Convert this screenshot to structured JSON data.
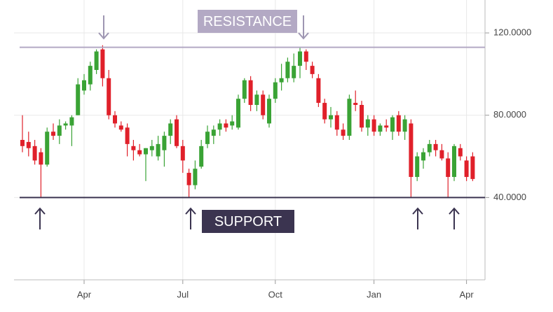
{
  "chart_data": {
    "type": "candlestick",
    "categories": [
      null,
      null,
      null,
      null,
      null,
      null,
      null,
      null,
      null,
      null,
      "Apr",
      null,
      null,
      null,
      null,
      null,
      null,
      null,
      null,
      null,
      null,
      null,
      null,
      null,
      null,
      null,
      "Jul",
      null,
      null,
      null,
      null,
      null,
      null,
      null,
      null,
      null,
      null,
      null,
      null,
      null,
      null,
      "Oct",
      null,
      null,
      null,
      null,
      null,
      null,
      null,
      null,
      null,
      null,
      null,
      null,
      null,
      null,
      null,
      "Jan",
      null,
      null,
      null,
      null,
      null,
      null,
      null,
      null,
      null,
      null,
      null,
      null,
      null,
      null,
      "Apr",
      null
    ],
    "open": [
      68,
      67,
      65,
      62,
      56,
      72,
      70,
      75,
      75,
      80,
      92,
      95,
      102,
      112,
      98,
      80,
      75,
      74,
      65,
      63,
      61,
      63,
      60,
      63,
      70,
      78,
      65,
      52,
      46,
      55,
      66,
      70,
      73,
      76,
      75,
      74,
      88,
      97,
      85,
      90,
      76,
      88,
      96,
      98,
      98,
      104,
      111,
      104,
      98,
      86,
      78,
      80,
      73,
      70,
      86,
      85,
      74,
      78,
      72,
      75,
      72,
      80,
      72,
      76,
      50,
      58,
      62,
      66,
      63,
      59,
      50,
      64,
      58,
      60
    ],
    "high": [
      80,
      72,
      68,
      64,
      74,
      76,
      78,
      77,
      80,
      98,
      100,
      106,
      112,
      114,
      102,
      82,
      77,
      76,
      68,
      66,
      64,
      68,
      70,
      72,
      78,
      80,
      68,
      54,
      58,
      68,
      75,
      75,
      78,
      78,
      80,
      90,
      98,
      99,
      92,
      92,
      90,
      98,
      105,
      108,
      110,
      113,
      112,
      106,
      100,
      88,
      84,
      82,
      76,
      90,
      92,
      87,
      80,
      80,
      76,
      78,
      80,
      82,
      80,
      78,
      62,
      64,
      68,
      68,
      66,
      62,
      66,
      66,
      60,
      62
    ],
    "low": [
      62,
      60,
      56,
      40,
      55,
      68,
      66,
      73,
      65,
      80,
      90,
      92,
      100,
      94,
      78,
      74,
      72,
      60,
      58,
      60,
      48,
      60,
      58,
      55,
      66,
      64,
      52,
      40,
      44,
      54,
      64,
      66,
      70,
      72,
      73,
      73,
      86,
      82,
      82,
      78,
      74,
      86,
      92,
      96,
      96,
      98,
      102,
      98,
      84,
      76,
      74,
      70,
      68,
      68,
      82,
      72,
      70,
      70,
      70,
      72,
      68,
      70,
      68,
      40,
      48,
      54,
      60,
      60,
      58,
      40,
      48,
      58,
      48,
      48
    ],
    "close": [
      65,
      64,
      58,
      56,
      72,
      70,
      75,
      76,
      79,
      95,
      97,
      104,
      111,
      98,
      80,
      76,
      73,
      66,
      63,
      61,
      64,
      65,
      66,
      70,
      76,
      65,
      58,
      46,
      54,
      65,
      72,
      73,
      76,
      74,
      77,
      88,
      97,
      85,
      90,
      80,
      88,
      96,
      98,
      106,
      104,
      111,
      106,
      100,
      86,
      78,
      80,
      73,
      70,
      88,
      85,
      74,
      78,
      72,
      75,
      74,
      79,
      72,
      78,
      50,
      60,
      62,
      66,
      63,
      59,
      50,
      65,
      60,
      50,
      49
    ],
    "up_color": "#3aa335",
    "down_color": "#e0202a",
    "ylim": [
      0,
      136
    ],
    "yticks": [
      {
        "value": 40,
        "label": "40.0000"
      },
      {
        "value": 80,
        "label": "80.0000"
      },
      {
        "value": 120,
        "label": "120.0000"
      }
    ],
    "grid": true,
    "annotations": [
      {
        "text": "RESISTANCE",
        "value": 113,
        "color": "#b3a9c4"
      },
      {
        "text": "SUPPORT",
        "value": 40,
        "color": "#3b3450"
      }
    ]
  }
}
